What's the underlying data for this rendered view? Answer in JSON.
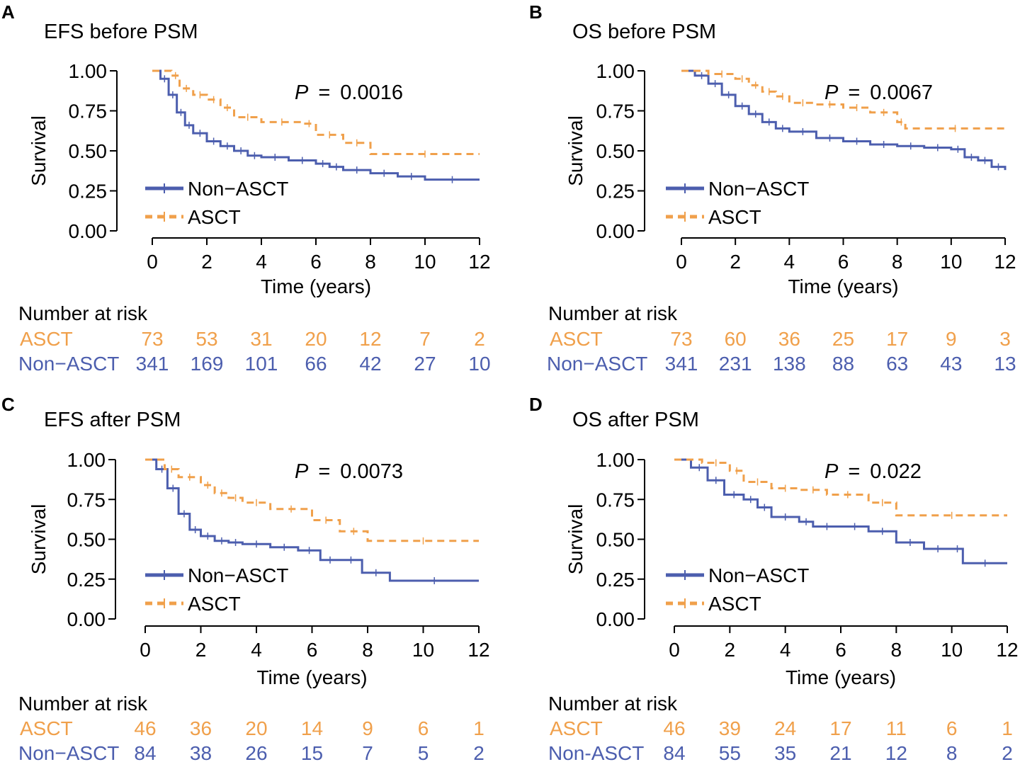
{
  "figure": {
    "xlabel": "Time (years)",
    "ylabel": "Survival",
    "risk_title": "Number at risk",
    "p_prefix": "P",
    "p_eq": "=",
    "colors": {
      "asct": "#F0A04B",
      "non_asct": "#4C5EAE",
      "axis": "#000000"
    }
  },
  "chart_data": [
    {
      "panel": "A",
      "type": "line",
      "title": "EFS before PSM",
      "p_value": "0.0016",
      "xlabel": "Time (years)",
      "ylabel": "Survival",
      "xlim": [
        0,
        12
      ],
      "ylim": [
        0,
        1
      ],
      "xticks": [
        "0",
        "2",
        "4",
        "6",
        "8",
        "10",
        "12"
      ],
      "yticks": [
        "0.00",
        "0.25",
        "0.50",
        "0.75",
        "1.00"
      ],
      "legend": [
        "Non−ASCT",
        "ASCT"
      ],
      "series": [
        {
          "name": "Non-ASCT",
          "style": "solid",
          "color": "#4C5EAE",
          "x": [
            0,
            0.3,
            0.6,
            0.9,
            1.2,
            1.5,
            2.0,
            2.5,
            3.0,
            3.5,
            4.0,
            5.0,
            6.0,
            6.5,
            7.0,
            8.0,
            9.0,
            10.0,
            12.0
          ],
          "y": [
            1.0,
            0.95,
            0.85,
            0.74,
            0.66,
            0.61,
            0.56,
            0.53,
            0.5,
            0.47,
            0.46,
            0.44,
            0.42,
            0.4,
            0.38,
            0.36,
            0.34,
            0.32,
            0.32
          ]
        },
        {
          "name": "ASCT",
          "style": "dashed",
          "color": "#F0A04B",
          "x": [
            0,
            0.7,
            1.0,
            1.5,
            2.0,
            2.5,
            3.0,
            4.0,
            5.5,
            6.0,
            7.0,
            8.0,
            12.0
          ],
          "y": [
            1.0,
            0.97,
            0.89,
            0.85,
            0.82,
            0.77,
            0.71,
            0.68,
            0.67,
            0.6,
            0.55,
            0.48,
            0.48
          ]
        }
      ],
      "risk_table": {
        "times": [
          "0",
          "2",
          "4",
          "6",
          "8",
          "10",
          "12"
        ],
        "rows": [
          {
            "label": "ASCT",
            "color": "#F0A04B",
            "values": [
              "73",
              "53",
              "31",
              "20",
              "12",
              "7",
              "2"
            ]
          },
          {
            "label": "Non−ASCT",
            "color": "#4C5EAE",
            "values": [
              "341",
              "169",
              "101",
              "66",
              "42",
              "27",
              "10"
            ]
          }
        ]
      }
    },
    {
      "panel": "B",
      "type": "line",
      "title": "OS before PSM",
      "p_value": "0.0067",
      "xlabel": "Time (years)",
      "ylabel": "Survival",
      "xlim": [
        0,
        12
      ],
      "ylim": [
        0,
        1
      ],
      "xticks": [
        "0",
        "2",
        "4",
        "6",
        "8",
        "10",
        "12"
      ],
      "yticks": [
        "0.00",
        "0.25",
        "0.50",
        "0.75",
        "1.00"
      ],
      "legend": [
        "Non−ASCT",
        "ASCT"
      ],
      "series": [
        {
          "name": "Non-ASCT",
          "style": "solid",
          "color": "#4C5EAE",
          "x": [
            0,
            0.5,
            1.0,
            1.5,
            2.0,
            2.5,
            3.0,
            3.5,
            4.0,
            5.0,
            6.0,
            7.0,
            8.0,
            9.0,
            10.0,
            10.5,
            11.0,
            11.5,
            12.0
          ],
          "y": [
            1.0,
            0.97,
            0.92,
            0.85,
            0.78,
            0.73,
            0.68,
            0.64,
            0.62,
            0.58,
            0.56,
            0.54,
            0.53,
            0.52,
            0.51,
            0.46,
            0.44,
            0.4,
            0.38
          ]
        },
        {
          "name": "ASCT",
          "style": "dashed",
          "color": "#F0A04B",
          "x": [
            0,
            1.0,
            2.0,
            2.5,
            3.0,
            3.5,
            4.0,
            5.0,
            6.0,
            7.0,
            8.0,
            8.3,
            12.0
          ],
          "y": [
            1.0,
            0.98,
            0.95,
            0.91,
            0.87,
            0.84,
            0.8,
            0.79,
            0.77,
            0.74,
            0.68,
            0.64,
            0.64
          ]
        }
      ],
      "risk_table": {
        "times": [
          "0",
          "2",
          "4",
          "6",
          "8",
          "10",
          "12"
        ],
        "rows": [
          {
            "label": "ASCT",
            "color": "#F0A04B",
            "values": [
              "73",
              "60",
              "36",
              "25",
              "17",
              "9",
              "3"
            ]
          },
          {
            "label": "Non−ASCT",
            "color": "#4C5EAE",
            "values": [
              "341",
              "231",
              "138",
              "88",
              "63",
              "43",
              "13"
            ]
          }
        ]
      }
    },
    {
      "panel": "C",
      "type": "line",
      "title": "EFS after PSM",
      "p_value": "0.0073",
      "xlabel": "Time (years)",
      "ylabel": "Survival",
      "xlim": [
        0,
        12
      ],
      "ylim": [
        0,
        1
      ],
      "xticks": [
        "0",
        "2",
        "4",
        "6",
        "8",
        "10",
        "12"
      ],
      "yticks": [
        "0.00",
        "0.25",
        "0.50",
        "0.75",
        "1.00"
      ],
      "legend": [
        "Non−ASCT",
        "ASCT"
      ],
      "series": [
        {
          "name": "Non-ASCT",
          "style": "solid",
          "color": "#4C5EAE",
          "x": [
            0,
            0.4,
            0.8,
            1.2,
            1.6,
            2.0,
            2.5,
            3.0,
            3.5,
            4.5,
            5.5,
            6.3,
            7.0,
            7.8,
            8.8,
            12.0
          ],
          "y": [
            1.0,
            0.94,
            0.82,
            0.66,
            0.56,
            0.52,
            0.49,
            0.48,
            0.47,
            0.45,
            0.43,
            0.37,
            0.37,
            0.29,
            0.24,
            0.24
          ]
        },
        {
          "name": "ASCT",
          "style": "dashed",
          "color": "#F0A04B",
          "x": [
            0,
            0.7,
            1.2,
            2.0,
            2.5,
            3.0,
            3.5,
            4.5,
            6.0,
            7.0,
            8.0,
            12.0
          ],
          "y": [
            1.0,
            0.94,
            0.89,
            0.84,
            0.79,
            0.76,
            0.73,
            0.69,
            0.62,
            0.55,
            0.49,
            0.49
          ]
        }
      ],
      "risk_table": {
        "times": [
          "0",
          "2",
          "4",
          "6",
          "8",
          "10",
          "12"
        ],
        "rows": [
          {
            "label": "ASCT",
            "color": "#F0A04B",
            "values": [
              "46",
              "36",
              "20",
              "14",
              "9",
              "6",
              "1"
            ]
          },
          {
            "label": "Non−ASCT",
            "color": "#4C5EAE",
            "values": [
              "84",
              "38",
              "26",
              "15",
              "7",
              "5",
              "2"
            ]
          }
        ]
      }
    },
    {
      "panel": "D",
      "type": "line",
      "title": "OS after PSM",
      "p_value": "0.022",
      "xlabel": "Time (years)",
      "ylabel": "Survival",
      "xlim": [
        0,
        12
      ],
      "ylim": [
        0,
        1
      ],
      "xticks": [
        "0",
        "2",
        "4",
        "6",
        "8",
        "10",
        "12"
      ],
      "yticks": [
        "0.00",
        "0.25",
        "0.50",
        "0.75",
        "1.00"
      ],
      "legend": [
        "Non−ASCT",
        "ASCT"
      ],
      "series": [
        {
          "name": "Non-ASCT",
          "style": "solid",
          "color": "#4C5EAE",
          "x": [
            0,
            0.6,
            1.2,
            1.8,
            2.5,
            3.0,
            3.5,
            4.5,
            5.0,
            6.0,
            7.0,
            8.0,
            9.0,
            10.0,
            10.4,
            12.0
          ],
          "y": [
            1.0,
            0.95,
            0.87,
            0.78,
            0.75,
            0.7,
            0.64,
            0.61,
            0.58,
            0.58,
            0.55,
            0.48,
            0.44,
            0.44,
            0.35,
            0.35
          ]
        },
        {
          "name": "ASCT",
          "style": "dashed",
          "color": "#F0A04B",
          "x": [
            0,
            1.0,
            2.0,
            2.5,
            3.5,
            4.5,
            5.5,
            7.0,
            8.0,
            12.0
          ],
          "y": [
            1.0,
            0.98,
            0.93,
            0.86,
            0.82,
            0.81,
            0.78,
            0.73,
            0.65,
            0.65
          ]
        }
      ],
      "risk_table": {
        "times": [
          "0",
          "2",
          "4",
          "6",
          "8",
          "10",
          "12"
        ],
        "rows": [
          {
            "label": "ASCT",
            "color": "#F0A04B",
            "values": [
              "46",
              "39",
              "24",
              "17",
              "11",
              "6",
              "1"
            ]
          },
          {
            "label": "Non-ASCT",
            "color": "#4C5EAE",
            "values": [
              "84",
              "55",
              "35",
              "21",
              "12",
              "8",
              "2"
            ]
          }
        ]
      }
    }
  ]
}
